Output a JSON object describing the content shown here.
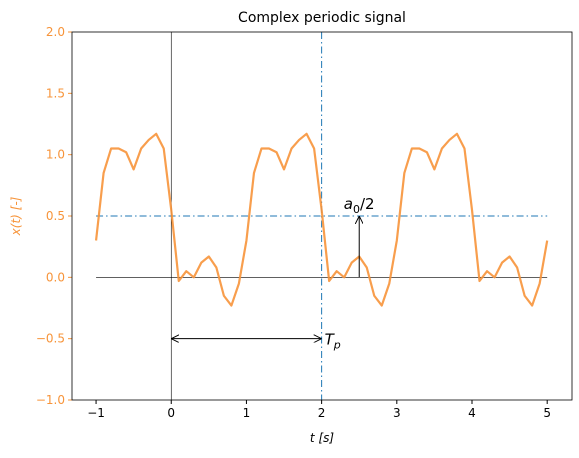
{
  "chart_data": {
    "type": "line",
    "title": "Complex periodic signal",
    "xlabel": "t [s]",
    "ylabel": "x(t) [-]",
    "x": [
      -1,
      -0.9,
      -0.8,
      -0.7,
      -0.6,
      -0.5,
      -0.4,
      -0.3,
      -0.2,
      -0.1,
      0,
      0.1,
      0.2,
      0.3,
      0.4,
      0.5,
      0.6,
      0.7,
      0.8,
      0.9,
      1,
      1.1,
      1.2,
      1.3,
      1.4,
      1.5,
      1.6,
      1.7,
      1.8,
      1.9,
      2,
      2.1,
      2.2,
      2.3,
      2.4,
      2.5,
      2.6,
      2.7,
      2.8,
      2.9,
      3,
      3.1,
      3.2,
      3.3,
      3.4,
      3.5,
      3.6,
      3.7,
      3.8,
      3.9,
      4,
      4.1,
      4.2,
      4.3,
      4.4,
      4.5,
      4.6,
      4.7,
      4.8,
      4.9,
      5
    ],
    "series": [
      {
        "color": "#f7943a",
        "values": [
          0.3,
          0.85,
          1.05,
          1.05,
          1.02,
          0.88,
          1.05,
          1.12,
          1.17,
          1.05,
          0.55,
          -0.03,
          0.05,
          0.0,
          0.12,
          0.17,
          0.08,
          -0.15,
          -0.23,
          -0.05,
          0.3,
          0.85,
          1.05,
          1.05,
          1.02,
          0.88,
          1.05,
          1.12,
          1.17,
          1.05,
          0.55,
          -0.03,
          0.05,
          0.0,
          0.12,
          0.17,
          0.08,
          -0.15,
          -0.23,
          -0.05,
          0.3,
          0.85,
          1.05,
          1.05,
          1.02,
          0.88,
          1.05,
          1.12,
          1.17,
          1.05,
          0.55,
          -0.03,
          0.05,
          0.0,
          0.12,
          0.17,
          0.08,
          -0.15,
          -0.23,
          -0.05,
          0.3
        ]
      }
    ],
    "xlim": [
      -1.32,
      5.33
    ],
    "ylim": [
      -1,
      2
    ],
    "xticks": [
      {
        "value": -1,
        "label": "−1"
      },
      0,
      1,
      2,
      3,
      4,
      5
    ],
    "yticks": [
      {
        "value": -1,
        "label": "−1.0"
      },
      {
        "value": -0.5,
        "label": "−0.5"
      },
      {
        "value": 0,
        "label": "0.0"
      },
      {
        "value": 0.5,
        "label": "0.5"
      },
      {
        "value": 1,
        "label": "1.0"
      },
      {
        "value": 1.5,
        "label": "1.5"
      },
      {
        "value": 2,
        "label": "2.0"
      }
    ],
    "axis_color": "#f7943a",
    "mean_line": {
      "value": 0.5,
      "color": "#1f77b4"
    },
    "period_line": {
      "value": 2,
      "color": "#1f77b4"
    },
    "zero_line": {
      "value": 0,
      "x": [
        -1,
        5
      ]
    },
    "origin_line": {
      "value": 0
    },
    "period_arrow": {
      "x": [
        0,
        2
      ],
      "y": -0.5,
      "label": {
        "base": "T",
        "sub": "p"
      }
    },
    "amp_arrow": {
      "x": 2.5,
      "y": [
        0,
        0.5
      ],
      "label": {
        "base": "a",
        "sub": "0",
        "rest": "/2"
      }
    }
  }
}
